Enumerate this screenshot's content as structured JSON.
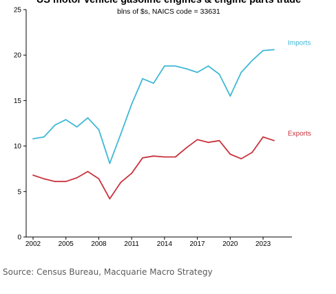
{
  "chart_data": {
    "type": "line",
    "title": "US motor vehicle gasoline engines & engine parts trade",
    "subtitle": "blns of $s, NAICS code = 33631",
    "xlabel": "",
    "ylabel": "",
    "x": [
      2002,
      2003,
      2004,
      2005,
      2006,
      2007,
      2008,
      2009,
      2010,
      2011,
      2012,
      2013,
      2014,
      2015,
      2016,
      2017,
      2018,
      2019,
      2020,
      2021,
      2022,
      2023,
      2024
    ],
    "x_ticks": [
      "2002",
      "2005",
      "2008",
      "2011",
      "2014",
      "2017",
      "2020",
      "2023"
    ],
    "y_ticks": [
      "0",
      "5",
      "10",
      "15",
      "20",
      "25"
    ],
    "xlim": [
      2002,
      2024
    ],
    "ylim": [
      0,
      25
    ],
    "grid": false,
    "legend": "labels at line ends",
    "series": [
      {
        "name": "Imports",
        "color": "#3fb8d6",
        "values": [
          10.8,
          11.0,
          12.3,
          12.9,
          12.1,
          13.1,
          11.8,
          8.1,
          11.3,
          14.6,
          17.4,
          16.9,
          18.8,
          18.8,
          18.5,
          18.1,
          18.8,
          17.9,
          15.5,
          18.1,
          19.4,
          20.5,
          20.6
        ]
      },
      {
        "name": "Exports",
        "color": "#c8323c",
        "values": [
          6.8,
          6.4,
          6.1,
          6.1,
          6.5,
          7.2,
          6.4,
          4.2,
          6.0,
          7.0,
          8.7,
          8.9,
          8.8,
          8.8,
          9.8,
          10.7,
          10.4,
          10.6,
          9.1,
          8.6,
          9.3,
          11.0,
          10.6
        ]
      }
    ]
  },
  "source": "Source: Census Bureau, Macquarie Macro Strategy"
}
